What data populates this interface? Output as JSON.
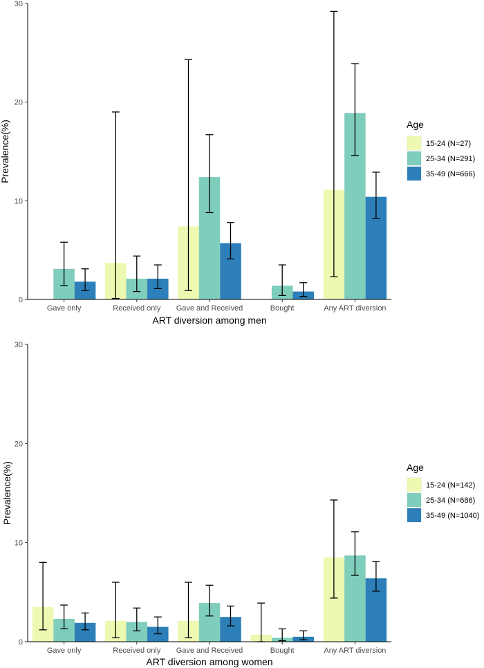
{
  "colors": {
    "series": [
      "#edf8b1",
      "#7fcdbb",
      "#2c7fb8"
    ],
    "axis": "#000000",
    "errorbar": "#000000",
    "legend_key_bg": "#f2f2f2"
  },
  "chart_data": [
    {
      "type": "bar",
      "title": "",
      "xlabel": "ART diversion among men",
      "ylabel": "Prevalence(%)",
      "ylim": [
        0,
        30
      ],
      "yticks": [
        0,
        10,
        20,
        30
      ],
      "grid": false,
      "categories": [
        "Gave only",
        "Received only",
        "Gave and Received",
        "Bought",
        "Any ART diversion"
      ],
      "legend_title": "Age",
      "legend_position": "right",
      "series": [
        {
          "name": "15-24 (N=27)",
          "values": [
            0,
            3.7,
            7.4,
            0,
            11.1
          ],
          "lower": [
            null,
            0.1,
            0.9,
            null,
            2.3
          ],
          "upper": [
            null,
            19.0,
            24.3,
            null,
            29.2
          ]
        },
        {
          "name": "25-34 (N=291)",
          "values": [
            3.1,
            2.1,
            12.4,
            1.4,
            18.9
          ],
          "lower": [
            1.4,
            0.8,
            8.8,
            0.4,
            14.6
          ],
          "upper": [
            5.8,
            4.4,
            16.7,
            3.5,
            23.9
          ]
        },
        {
          "name": "35-49 (N=666)",
          "values": [
            1.8,
            2.1,
            5.7,
            0.8,
            10.4
          ],
          "lower": [
            0.9,
            1.1,
            4.1,
            0.3,
            8.2
          ],
          "upper": [
            3.1,
            3.5,
            7.8,
            1.7,
            12.9
          ]
        }
      ]
    },
    {
      "type": "bar",
      "title": "",
      "xlabel": "ART diversion among women",
      "ylabel": "Prevalence(%)",
      "ylim": [
        0,
        30
      ],
      "yticks": [
        0,
        10,
        20,
        30
      ],
      "grid": false,
      "categories": [
        "Gave only",
        "Received only",
        "Gave and Received",
        "Bought",
        "Any ART diversion"
      ],
      "legend_title": "Age",
      "legend_position": "right",
      "series": [
        {
          "name": "15-24 (N=142)",
          "values": [
            3.5,
            2.1,
            2.1,
            0.7,
            8.5
          ],
          "lower": [
            1.2,
            0.4,
            0.4,
            0.0,
            4.4
          ],
          "upper": [
            8.0,
            6.0,
            6.0,
            3.9,
            14.3
          ]
        },
        {
          "name": "25-34 (N=686)",
          "values": [
            2.3,
            2.0,
            3.9,
            0.4,
            8.7
          ],
          "lower": [
            1.3,
            1.1,
            2.6,
            0.1,
            6.7
          ],
          "upper": [
            3.7,
            3.4,
            5.7,
            1.3,
            11.1
          ]
        },
        {
          "name": "35-49 (N=1040)",
          "values": [
            1.9,
            1.5,
            2.5,
            0.5,
            6.4
          ],
          "lower": [
            1.2,
            0.8,
            1.6,
            0.2,
            5.1
          ],
          "upper": [
            2.9,
            2.5,
            3.6,
            1.1,
            8.1
          ]
        }
      ]
    }
  ]
}
